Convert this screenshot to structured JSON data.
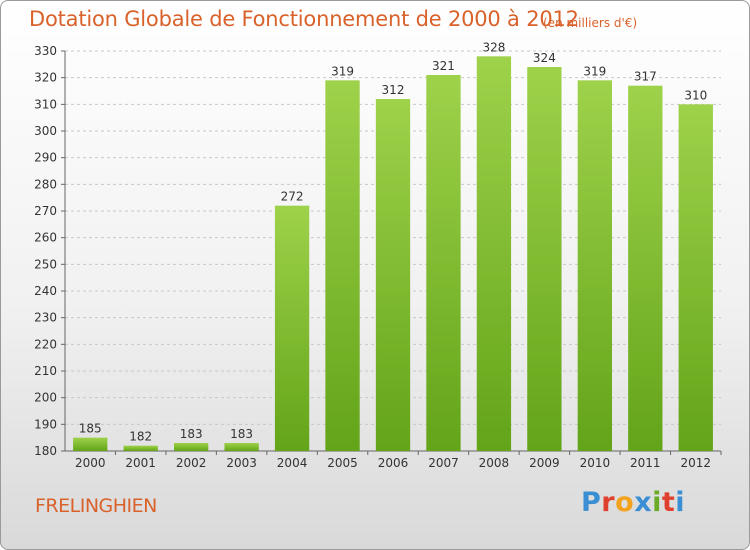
{
  "header": {
    "title": "Dotation Globale de Fonctionnement de 2000 à 2012",
    "subtitle": "(en milliers d'€)"
  },
  "footer": {
    "place": "FRELINGHIEN",
    "logo_letters": [
      "P",
      "r",
      "o",
      "x",
      "i",
      "t",
      "i"
    ],
    "logo_colors": [
      "#3a8fd4",
      "#e0402e",
      "#f2a21b",
      "#3a8fd4",
      "#6aab28",
      "#e0402e",
      "#3a8fd4"
    ]
  },
  "colors": {
    "bar_light": "#9ed24a",
    "bar_dark": "#63a418",
    "text_accent": "#d9622b"
  },
  "chart_data": {
    "type": "bar",
    "categories": [
      "2000",
      "2001",
      "2002",
      "2003",
      "2004",
      "2005",
      "2006",
      "2007",
      "2008",
      "2009",
      "2010",
      "2011",
      "2012"
    ],
    "values": [
      185,
      182,
      183,
      183,
      272,
      319,
      312,
      321,
      328,
      324,
      319,
      317,
      310
    ],
    "ylim": [
      180,
      330
    ],
    "yticks": [
      180,
      190,
      200,
      210,
      220,
      230,
      240,
      250,
      260,
      270,
      280,
      290,
      300,
      310,
      320,
      330
    ],
    "grid": true,
    "title": "Dotation Globale de Fonctionnement de 2000 à 2012",
    "xlabel": "",
    "ylabel": ""
  }
}
